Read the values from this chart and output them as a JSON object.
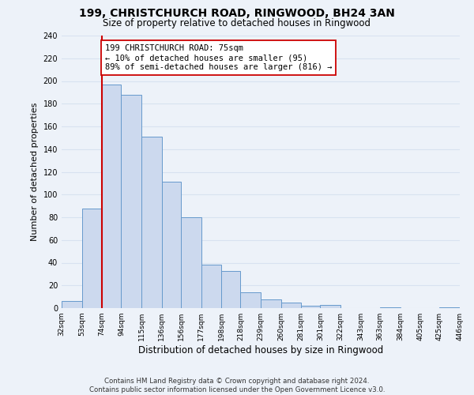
{
  "title": "199, CHRISTCHURCH ROAD, RINGWOOD, BH24 3AN",
  "subtitle": "Size of property relative to detached houses in Ringwood",
  "xlabel": "Distribution of detached houses by size in Ringwood",
  "ylabel": "Number of detached properties",
  "bins": [
    32,
    53,
    74,
    94,
    115,
    136,
    156,
    177,
    198,
    218,
    239,
    260,
    281,
    301,
    322,
    343,
    363,
    384,
    405,
    425,
    446
  ],
  "counts": [
    6,
    88,
    197,
    188,
    151,
    111,
    80,
    38,
    33,
    14,
    8,
    5,
    2,
    3,
    0,
    0,
    1,
    0,
    0,
    1
  ],
  "bar_color": "#ccd9ee",
  "bar_edge_color": "#6699cc",
  "property_line_x": 74,
  "property_line_color": "#cc0000",
  "annotation_line1": "199 CHRISTCHURCH ROAD: 75sqm",
  "annotation_line2": "← 10% of detached houses are smaller (95)",
  "annotation_line3": "89% of semi-detached houses are larger (816) →",
  "annotation_box_color": "#ffffff",
  "annotation_box_edge": "#cc0000",
  "ylim": [
    0,
    240
  ],
  "yticks": [
    0,
    20,
    40,
    60,
    80,
    100,
    120,
    140,
    160,
    180,
    200,
    220,
    240
  ],
  "tick_labels": [
    "32sqm",
    "53sqm",
    "74sqm",
    "94sqm",
    "115sqm",
    "136sqm",
    "156sqm",
    "177sqm",
    "198sqm",
    "218sqm",
    "239sqm",
    "260sqm",
    "281sqm",
    "301sqm",
    "322sqm",
    "343sqm",
    "363sqm",
    "384sqm",
    "405sqm",
    "425sqm",
    "446sqm"
  ],
  "footer_text": "Contains HM Land Registry data © Crown copyright and database right 2024.\nContains public sector information licensed under the Open Government Licence v3.0.",
  "background_color": "#edf2f9",
  "grid_color": "#d8e2f0",
  "title_fontsize": 10,
  "subtitle_fontsize": 8.5
}
